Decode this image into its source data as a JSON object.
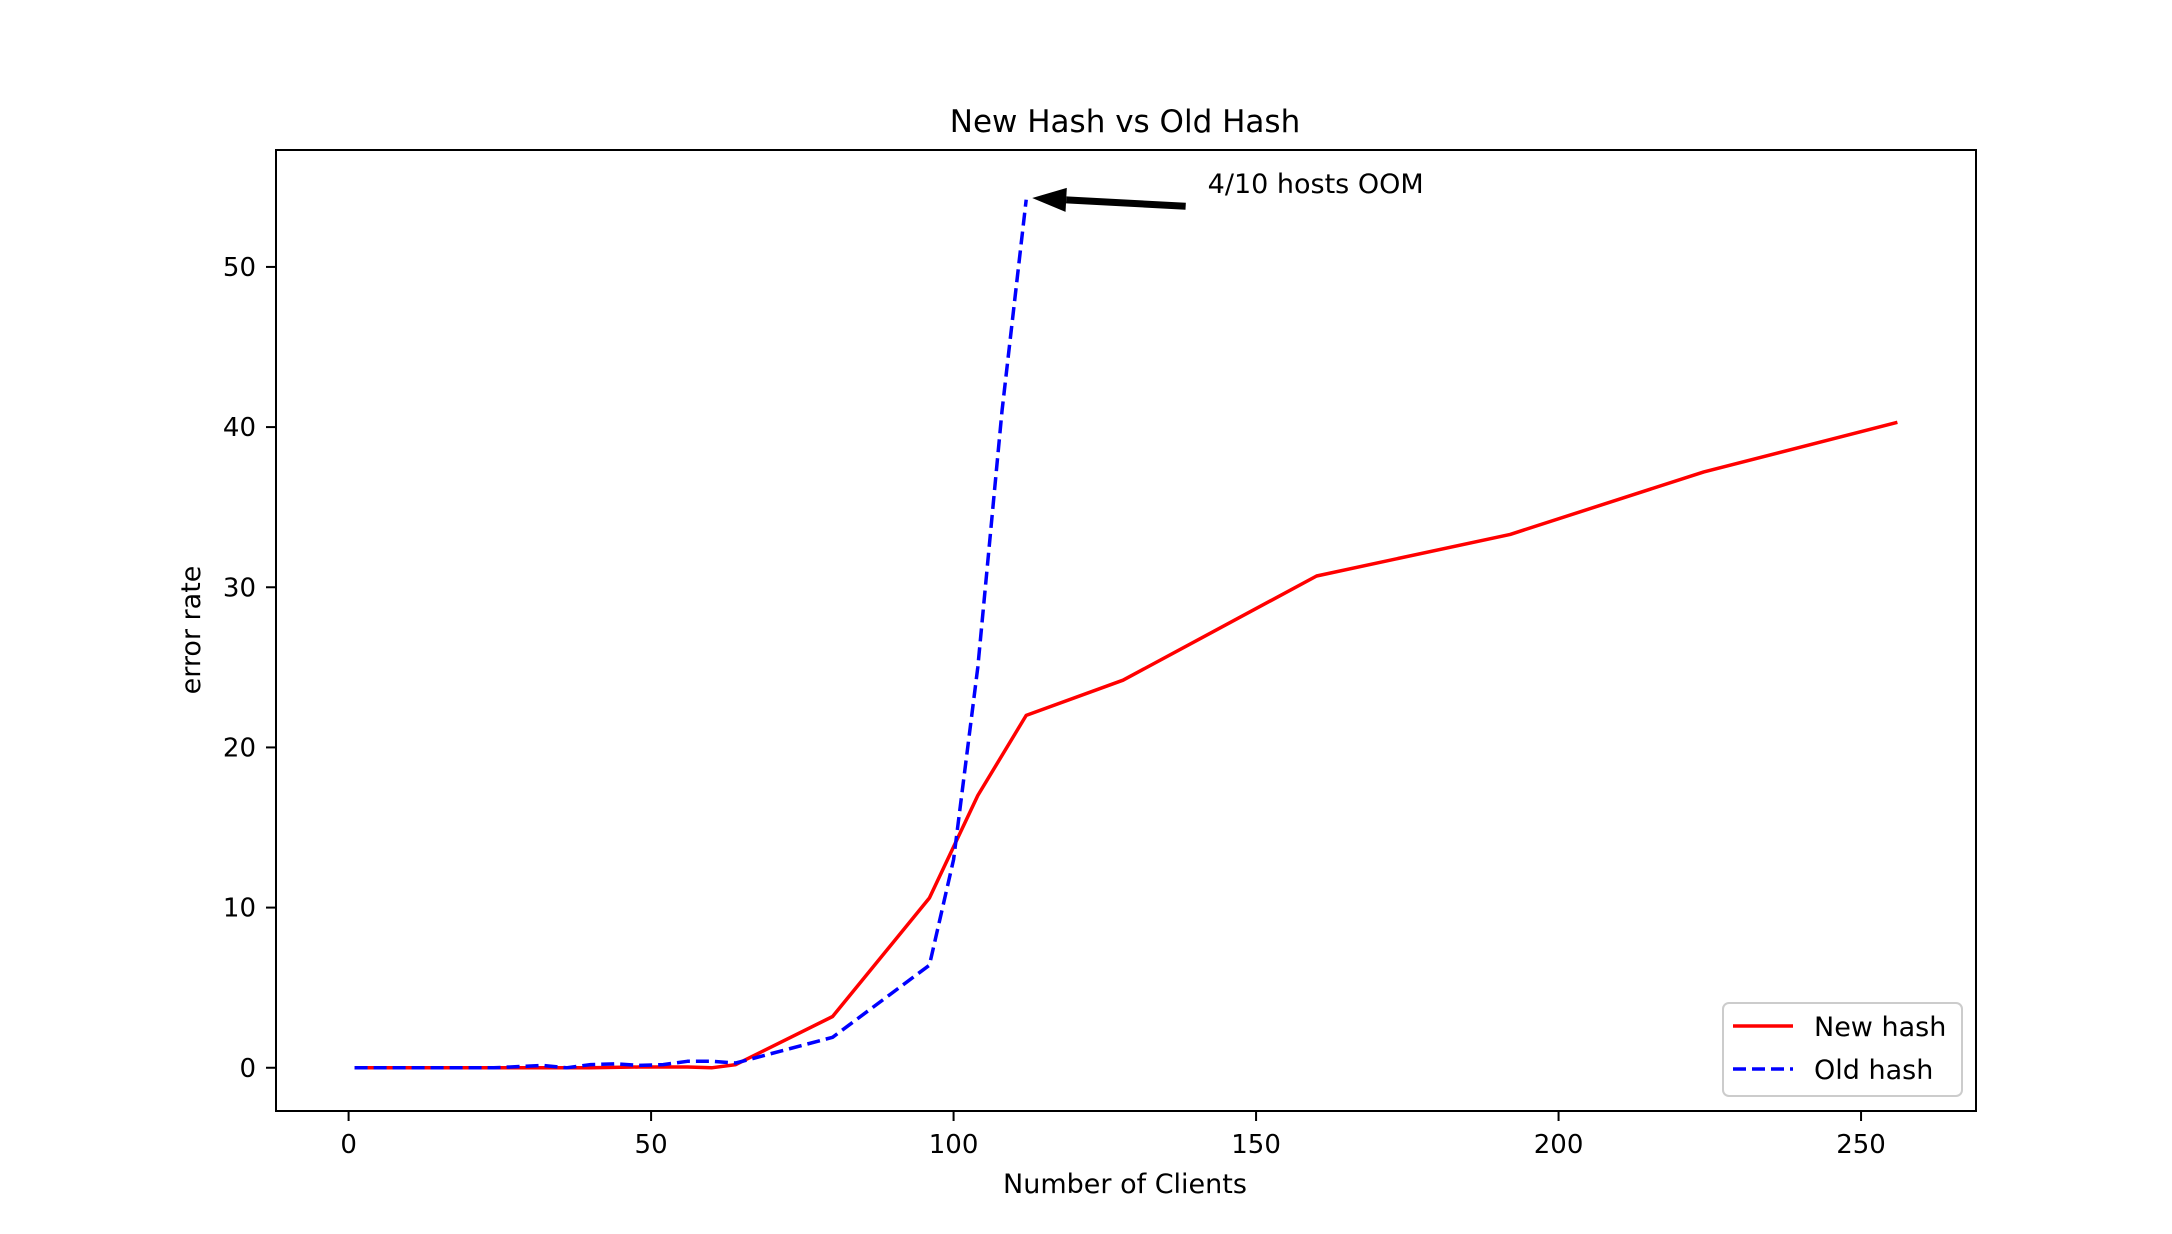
{
  "chart_data": {
    "type": "line",
    "title": "New Hash vs Old Hash",
    "xlabel": "Number of Clients",
    "ylabel": "error rate",
    "xlim": [
      -12,
      269
    ],
    "ylim": [
      -2.7,
      57.3
    ],
    "xticks": [
      0,
      50,
      100,
      150,
      200,
      250
    ],
    "yticks": [
      0,
      10,
      20,
      30,
      40,
      50
    ],
    "grid": false,
    "legend_position": "lower-right",
    "series": [
      {
        "name": "New hash",
        "color": "#ff0000",
        "style": "solid",
        "x": [
          1,
          8,
          16,
          24,
          32,
          40,
          48,
          56,
          60,
          64,
          80,
          96,
          104,
          112,
          128,
          160,
          192,
          224,
          256
        ],
        "y": [
          0.0,
          0.0,
          0.0,
          0.0,
          0.0,
          0.0,
          0.05,
          0.05,
          0.0,
          0.2,
          3.2,
          10.6,
          17.0,
          22.0,
          24.2,
          30.7,
          33.3,
          37.2,
          40.3
        ]
      },
      {
        "name": "Old hash",
        "color": "#0000ff",
        "style": "dashed",
        "x": [
          1,
          8,
          16,
          24,
          32,
          36,
          40,
          44,
          48,
          52,
          56,
          60,
          64,
          80,
          96,
          100,
          104,
          108,
          112
        ],
        "y": [
          0.0,
          0.0,
          0.0,
          0.0,
          0.15,
          0.0,
          0.2,
          0.25,
          0.15,
          0.2,
          0.4,
          0.4,
          0.3,
          1.9,
          6.4,
          13.0,
          25.0,
          41.0,
          54.2
        ]
      }
    ],
    "annotations": [
      {
        "text": "4/10 hosts OOM",
        "xy": [
          113,
          54.3
        ],
        "xytext": [
          142,
          54.6
        ]
      }
    ]
  }
}
